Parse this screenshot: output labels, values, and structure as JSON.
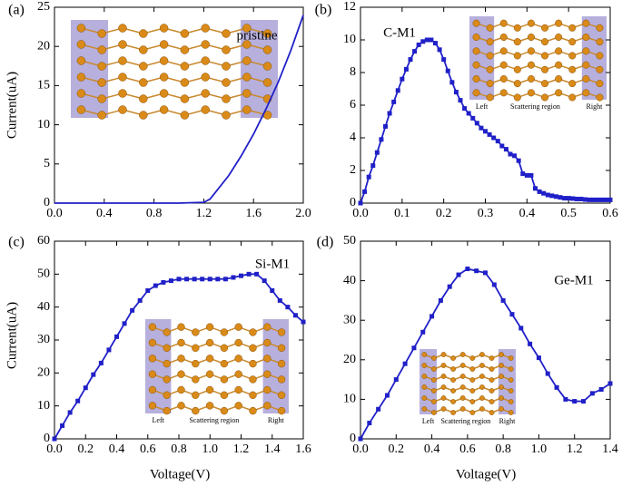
{
  "chart_data": [
    {
      "type": "line",
      "panel_label": "(a)",
      "annotation": "pristine",
      "ylabel": "Current(uA)",
      "x": [
        0,
        0.2,
        0.4,
        0.6,
        0.8,
        1.0,
        1.2,
        1.25,
        1.3,
        1.4,
        1.5,
        1.6,
        1.7,
        1.8,
        1.9,
        2.0
      ],
      "series": [
        {
          "color": "#2020c8",
          "values": [
            0,
            0,
            0,
            0,
            0,
            0,
            0.1,
            0.5,
            1.5,
            3.5,
            6,
            8.8,
            12,
            15.5,
            19.5,
            24
          ]
        }
      ],
      "xlim": [
        0,
        2
      ],
      "ylim": [
        0,
        25
      ],
      "xticks": [
        {
          "value": 0,
          "label": "0.0"
        },
        0.4,
        0.8,
        1.2,
        1.6,
        {
          "value": 2,
          "label": "2.0"
        }
      ],
      "yticks": [
        0,
        5,
        10,
        15,
        20,
        25
      ]
    },
    {
      "type": "line",
      "panel_label": "(b)",
      "annotation": "C-M1",
      "marker": "square",
      "inset_labels": [
        "Left",
        "Scattering region",
        "Right"
      ],
      "x": [
        0,
        0.01,
        0.02,
        0.03,
        0.04,
        0.05,
        0.06,
        0.07,
        0.08,
        0.09,
        0.1,
        0.11,
        0.12,
        0.13,
        0.14,
        0.15,
        0.16,
        0.17,
        0.18,
        0.19,
        0.2,
        0.21,
        0.22,
        0.23,
        0.24,
        0.25,
        0.26,
        0.27,
        0.28,
        0.29,
        0.3,
        0.31,
        0.32,
        0.33,
        0.34,
        0.35,
        0.36,
        0.37,
        0.38,
        0.39,
        0.4,
        0.41,
        0.42,
        0.43,
        0.44,
        0.45,
        0.46,
        0.47,
        0.48,
        0.49,
        0.5,
        0.51,
        0.52,
        0.53,
        0.54,
        0.55,
        0.56,
        0.57,
        0.58,
        0.59,
        0.6
      ],
      "series": [
        {
          "color": "#2020c8",
          "values": [
            0,
            0.7,
            1.6,
            2.3,
            3.1,
            3.9,
            4.7,
            5.5,
            6.2,
            6.9,
            7.6,
            8.2,
            8.8,
            9.3,
            9.7,
            9.9,
            10,
            10,
            9.8,
            9.4,
            8.8,
            8.1,
            7.4,
            6.8,
            6.3,
            5.8,
            5.5,
            5.2,
            4.9,
            4.6,
            4.4,
            4.2,
            4,
            3.8,
            3.5,
            3.3,
            3,
            2.9,
            2.6,
            1.8,
            1.7,
            1.7,
            0.9,
            0.7,
            0.6,
            0.5,
            0.45,
            0.4,
            0.35,
            0.3,
            0.3,
            0.28,
            0.25,
            0.25,
            0.22,
            0.2,
            0.2,
            0.2,
            0.2,
            0.2,
            0.2
          ]
        }
      ],
      "xlim": [
        0,
        0.6
      ],
      "ylim": [
        0,
        12
      ],
      "xticks": [
        {
          "value": 0,
          "label": "0.0"
        },
        0.1,
        0.2,
        0.3,
        0.4,
        0.5,
        0.6
      ],
      "yticks": [
        0,
        2,
        4,
        6,
        8,
        10,
        12
      ]
    },
    {
      "type": "line",
      "panel_label": "(c)",
      "annotation": "Si-M1",
      "marker": "square",
      "ylabel": "Current(uA)",
      "xlabel": "Voltage(V)",
      "inset_labels": [
        "Left",
        "Scattering region",
        "Right"
      ],
      "x": [
        0,
        0.05,
        0.1,
        0.15,
        0.2,
        0.25,
        0.3,
        0.35,
        0.4,
        0.45,
        0.5,
        0.55,
        0.6,
        0.65,
        0.7,
        0.75,
        0.8,
        0.85,
        0.9,
        0.95,
        1.0,
        1.05,
        1.1,
        1.15,
        1.2,
        1.25,
        1.3,
        1.35,
        1.4,
        1.45,
        1.5,
        1.55,
        1.6
      ],
      "series": [
        {
          "color": "#2020c8",
          "values": [
            0,
            4,
            8,
            11.5,
            15.5,
            19.5,
            23,
            27,
            31,
            35,
            39,
            42,
            45,
            46.5,
            47.5,
            48,
            48.5,
            48.5,
            48.5,
            48.5,
            48.5,
            48.5,
            48.5,
            49,
            49.5,
            50,
            50,
            48,
            45,
            42,
            40,
            37.5,
            35.5
          ]
        }
      ],
      "xlim": [
        0,
        1.6
      ],
      "ylim": [
        0,
        60
      ],
      "xticks": [
        {
          "value": 0,
          "label": "0.0"
        },
        0.2,
        0.4,
        0.6,
        0.8,
        {
          "value": 1,
          "label": "1.0"
        },
        1.2,
        1.4,
        1.6
      ],
      "yticks": [
        0,
        10,
        20,
        30,
        40,
        50,
        60
      ]
    },
    {
      "type": "line",
      "panel_label": "(d)",
      "annotation": "Ge-M1",
      "marker": "square",
      "xlabel": "Voltage(V)",
      "inset_labels": [
        "Left",
        "Scattering region",
        "Right"
      ],
      "x": [
        0,
        0.05,
        0.1,
        0.15,
        0.2,
        0.25,
        0.3,
        0.35,
        0.4,
        0.45,
        0.5,
        0.55,
        0.6,
        0.65,
        0.7,
        0.75,
        0.8,
        0.85,
        0.9,
        0.95,
        1.0,
        1.05,
        1.1,
        1.15,
        1.2,
        1.25,
        1.3,
        1.35,
        1.4
      ],
      "series": [
        {
          "color": "#2020c8",
          "values": [
            0,
            4,
            7.5,
            11,
            15,
            19,
            23,
            27,
            31,
            35,
            38.5,
            41.5,
            43,
            42.5,
            42,
            39,
            35,
            31.5,
            28,
            24,
            20.5,
            16.5,
            13,
            10,
            9.5,
            9.5,
            11.5,
            12.5,
            14
          ]
        }
      ],
      "xlim": [
        0,
        1.4
      ],
      "ylim": [
        0,
        50
      ],
      "xticks": [
        {
          "value": 0,
          "label": "0.0"
        },
        0.2,
        0.4,
        0.6,
        0.8,
        {
          "value": 1,
          "label": "1.0"
        },
        1.2,
        1.4
      ],
      "yticks": [
        0,
        10,
        20,
        30,
        40,
        50
      ]
    }
  ]
}
